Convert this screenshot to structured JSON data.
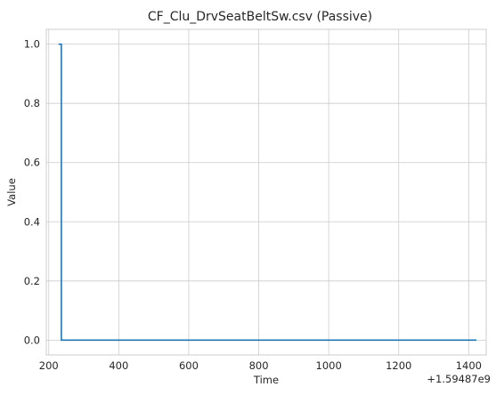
{
  "chart_data": {
    "type": "line",
    "title": "CF_Clu_DrvSeatBeltSw.csv (Passive)",
    "xlabel": "Time",
    "ylabel": "Value",
    "x_offset_label": "+1.59487e9",
    "xlim": [
      193,
      1450
    ],
    "ylim": [
      -0.05,
      1.05
    ],
    "xticks": [
      200,
      400,
      600,
      800,
      1000,
      1200,
      1400
    ],
    "yticks": [
      0.0,
      0.2,
      0.4,
      0.6,
      0.8,
      1.0
    ],
    "xtick_labels": [
      "200",
      "400",
      "600",
      "800",
      "1000",
      "1200",
      "1400"
    ],
    "ytick_labels": [
      "0.0",
      "0.2",
      "0.4",
      "0.6",
      "0.8",
      "1.0"
    ],
    "grid": true,
    "series": [
      {
        "color": "#1f77b4",
        "x": [
          228,
          236,
          236,
          1422
        ],
        "y": [
          1,
          1,
          0,
          0
        ]
      }
    ]
  }
}
